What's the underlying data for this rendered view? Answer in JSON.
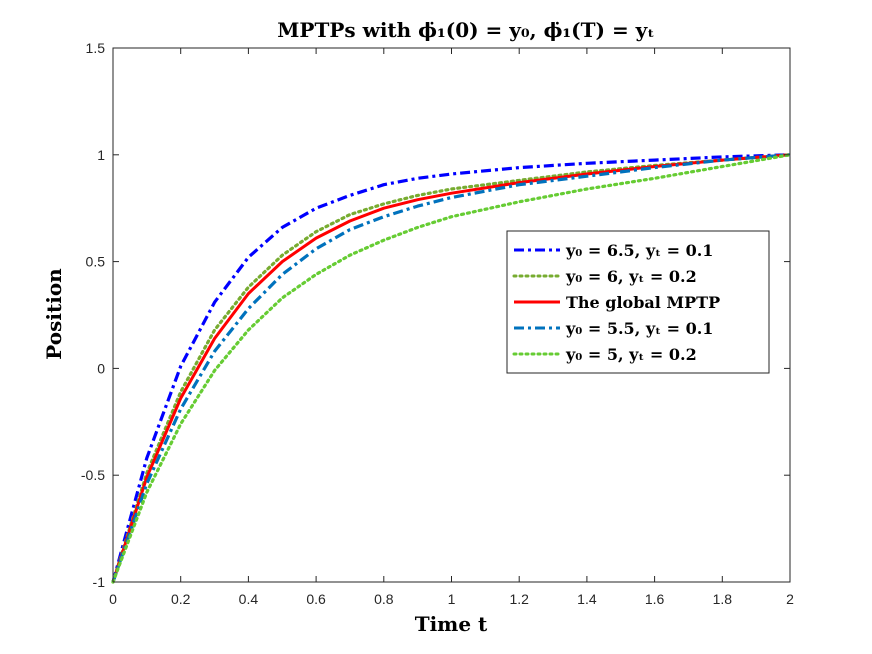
{
  "chart_data": {
    "type": "line",
    "title": "MPTPs with ϕ̇₁(0) = y₀, ϕ̇₁(T) = yₜ",
    "xlabel": "Time t",
    "ylabel": "Position",
    "xlim": [
      0,
      2
    ],
    "ylim": [
      -1,
      1.5
    ],
    "xticks": [
      0,
      0.2,
      0.4,
      0.6,
      0.8,
      1,
      1.2,
      1.4,
      1.6,
      1.8,
      2
    ],
    "xtick_labels": [
      "0",
      "0.2",
      "0.4",
      "0.6",
      "0.8",
      "1",
      "1.2",
      "1.4",
      "1.6",
      "1.8",
      "2"
    ],
    "yticks": [
      -1,
      -0.5,
      0,
      0.5,
      1,
      1.5
    ],
    "ytick_labels": [
      "-1",
      "-0.5",
      "0",
      "0.5",
      "1",
      "1.5"
    ],
    "grid": false,
    "legend_position": "center-right",
    "x": [
      0,
      0.1,
      0.2,
      0.3,
      0.4,
      0.5,
      0.6,
      0.7,
      0.8,
      0.9,
      1.0,
      1.2,
      1.4,
      1.6,
      1.8,
      2.0
    ],
    "series": [
      {
        "name": "y₀ = 6.5, yₜ = 0.1",
        "color": "#0000ff",
        "style": "dashdot",
        "values": [
          -1,
          -0.42,
          0.01,
          0.31,
          0.52,
          0.66,
          0.75,
          0.81,
          0.86,
          0.89,
          0.91,
          0.94,
          0.96,
          0.975,
          0.99,
          1.0
        ]
      },
      {
        "name": "y₀ = 6, yₜ = 0.2",
        "color": "#77ac30",
        "style": "dotted",
        "values": [
          -1,
          -0.49,
          -0.11,
          0.18,
          0.38,
          0.53,
          0.64,
          0.72,
          0.77,
          0.81,
          0.84,
          0.88,
          0.92,
          0.95,
          0.975,
          1.0
        ]
      },
      {
        "name": "The global MPTP",
        "color": "#ff0000",
        "style": "solid",
        "values": [
          -1,
          -0.51,
          -0.14,
          0.14,
          0.35,
          0.5,
          0.61,
          0.69,
          0.75,
          0.79,
          0.82,
          0.87,
          0.91,
          0.945,
          0.975,
          1.0
        ]
      },
      {
        "name": "y₀ = 5.5, yₜ = 0.1",
        "color": "#0072bd",
        "style": "dashdot",
        "values": [
          -1,
          -0.54,
          -0.19,
          0.08,
          0.28,
          0.44,
          0.56,
          0.65,
          0.71,
          0.76,
          0.8,
          0.86,
          0.9,
          0.94,
          0.975,
          1.0
        ]
      },
      {
        "name": "y₀ = 5, yₜ = 0.2",
        "color": "#66cc33",
        "style": "dotted",
        "values": [
          -1,
          -0.58,
          -0.26,
          -0.01,
          0.18,
          0.33,
          0.44,
          0.53,
          0.6,
          0.66,
          0.71,
          0.78,
          0.84,
          0.89,
          0.945,
          1.0
        ]
      }
    ]
  }
}
